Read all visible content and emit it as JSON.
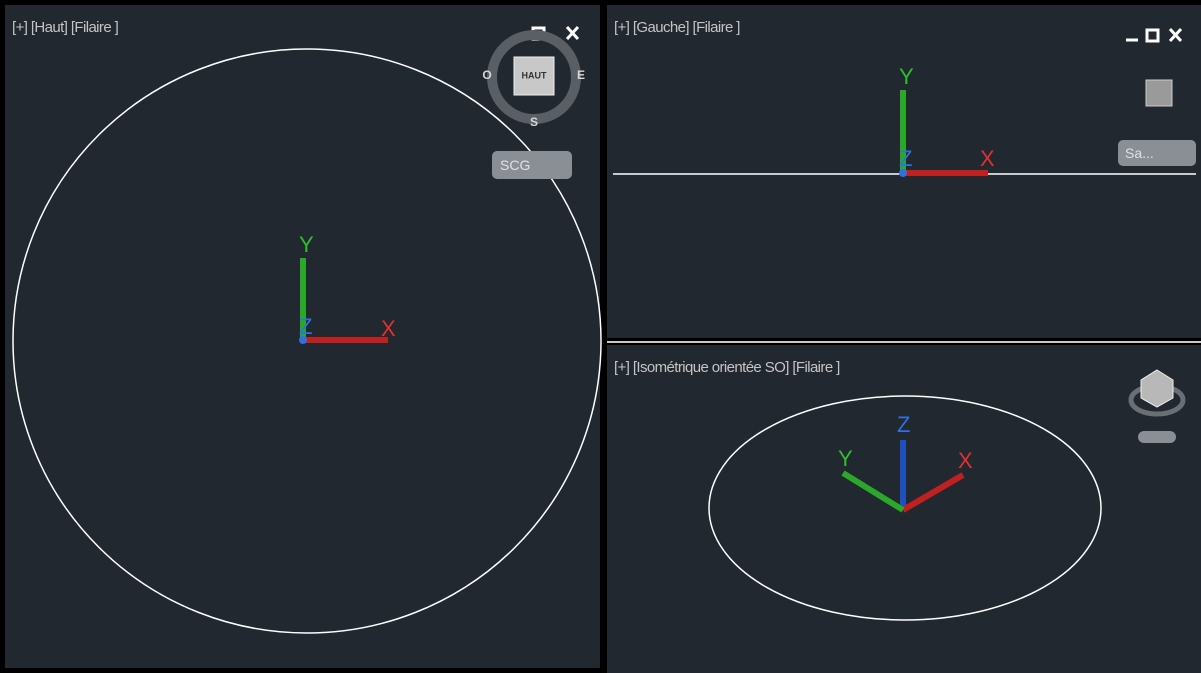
{
  "viewports": [
    {
      "label": "[+] [Haut] [Filaire ]",
      "viewcube": {
        "face": "HAUT",
        "compass": [
          "O",
          "E",
          "S"
        ],
        "ucs_menu": "SCG"
      },
      "axes": [
        "X",
        "Y",
        "Z"
      ]
    },
    {
      "label": "[+] [Gauche] [Filaire ]",
      "viewcube": {
        "ucs_menu": "Sa..."
      },
      "axes": [
        "X",
        "Y",
        "Z"
      ]
    },
    {
      "label": "[+] [Isométrique orientée SO] [Filaire ]",
      "axes": [
        "X",
        "Y",
        "Z"
      ]
    }
  ]
}
